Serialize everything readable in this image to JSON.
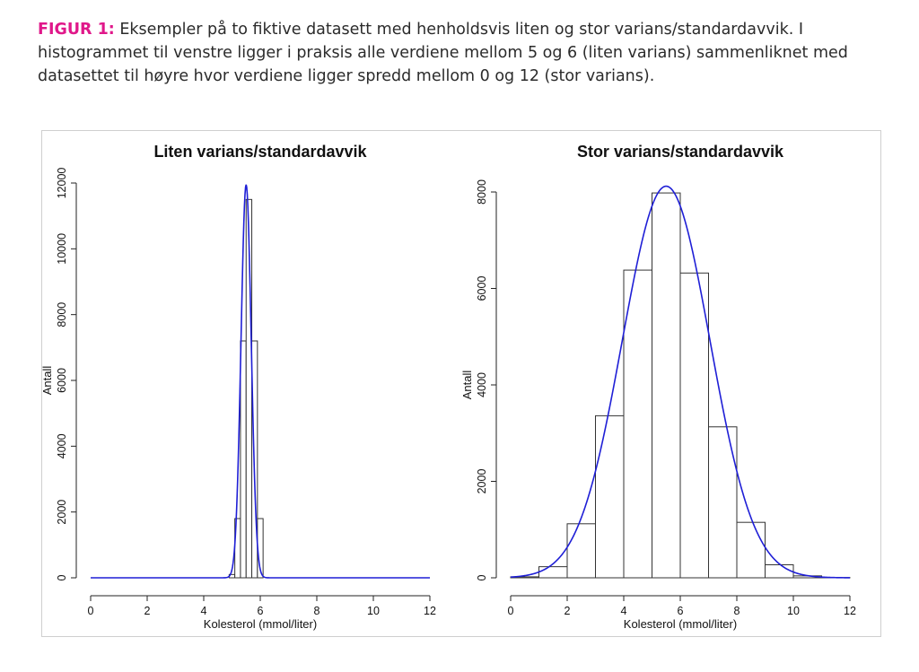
{
  "caption": {
    "label": "FIGUR 1:",
    "text": " Eksempler på to fiktive datasett med henholdsvis liten og stor varians/standardavvik. I histogrammet til venstre ligger i praksis alle verdiene mellom 5 og 6 (liten varians) sammenliknet med datasettet til høyre hvor verdiene ligger spredd mellom 0 og 12 (stor varians)."
  },
  "colors": {
    "accent": "#e0188a",
    "curve": "#1f1fd6",
    "bar_stroke": "#333333"
  },
  "chart_data": [
    {
      "type": "bar",
      "title": "Liten varians/standardavvik",
      "xlabel": "Kolesterol (mmol/liter)",
      "ylabel": "Antall",
      "xlim": [
        0,
        12
      ],
      "ylim": [
        0,
        12000
      ],
      "x_ticks": [
        0,
        2,
        4,
        6,
        8,
        10,
        12
      ],
      "y_ticks": [
        0,
        2000,
        4000,
        6000,
        8000,
        10000,
        12000
      ],
      "bin_edges": [
        4.9,
        5.1,
        5.3,
        5.5,
        5.7,
        5.9,
        6.1
      ],
      "values": [
        100,
        1800,
        7200,
        11500,
        7200,
        1800
      ],
      "curve": {
        "type": "normal",
        "mean": 5.5,
        "sd": 0.18,
        "peak": 11950
      },
      "grid": false
    },
    {
      "type": "bar",
      "title": "Stor varians/standardavvik",
      "xlabel": "Kolesterol (mmol/liter)",
      "ylabel": "Antall",
      "xlim": [
        0,
        12
      ],
      "ylim": [
        0,
        8000
      ],
      "x_ticks": [
        0,
        2,
        4,
        6,
        8,
        10,
        12
      ],
      "y_ticks": [
        0,
        2000,
        4000,
        6000,
        8000
      ],
      "bin_edges": [
        0,
        1,
        2,
        3,
        4,
        5,
        6,
        7,
        8,
        9,
        10,
        11,
        12
      ],
      "values": [
        20,
        230,
        1120,
        3360,
        6380,
        7980,
        6320,
        3130,
        1150,
        270,
        40,
        5
      ],
      "curve": {
        "type": "normal",
        "mean": 5.5,
        "sd": 1.55,
        "peak": 8120
      },
      "grid": false
    }
  ]
}
